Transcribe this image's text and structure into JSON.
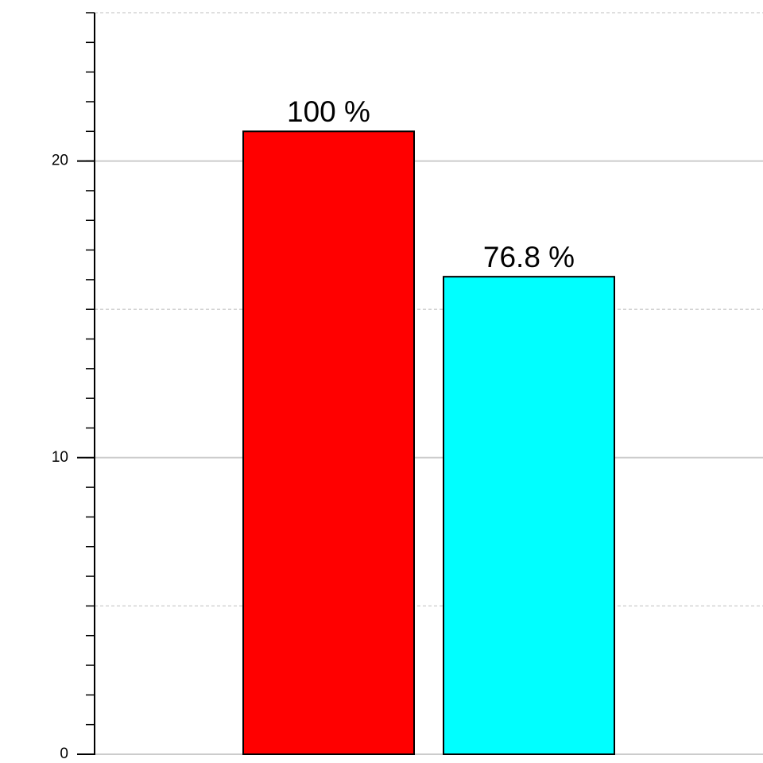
{
  "chart_data": {
    "type": "bar",
    "categories": [
      null,
      null
    ],
    "values": [
      21,
      16.1
    ],
    "bar_labels": [
      "100 %",
      "76.8 %"
    ],
    "colors": [
      "#ff0000",
      "#00ffff"
    ],
    "ylim": [
      0,
      25
    ],
    "yticks": [
      0,
      10,
      20
    ],
    "minor_gridlines": [
      5,
      15,
      25
    ],
    "yminor_step": 1,
    "grid": true
  }
}
